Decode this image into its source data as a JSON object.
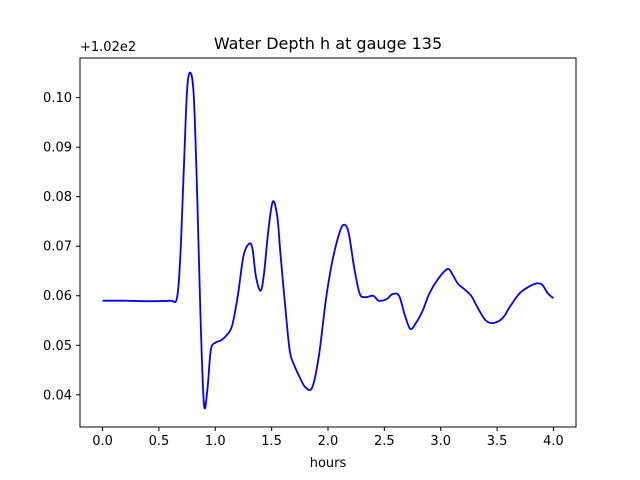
{
  "chart_data": {
    "type": "line",
    "title": "Water Depth h at gauge 135",
    "xlabel": "hours",
    "ylabel": "",
    "offset_label": "+1.02e2",
    "xlim": [
      -0.2,
      4.2
    ],
    "ylim": [
      0.0335,
      0.108
    ],
    "x_ticks": [
      0.0,
      0.5,
      1.0,
      1.5,
      2.0,
      2.5,
      3.0,
      3.5,
      4.0
    ],
    "x_tick_labels": [
      "0.0",
      "0.5",
      "1.0",
      "1.5",
      "2.0",
      "2.5",
      "3.0",
      "3.5",
      "4.0"
    ],
    "y_ticks": [
      0.04,
      0.05,
      0.06,
      0.07,
      0.08,
      0.09,
      0.1
    ],
    "y_tick_labels": [
      "0.04",
      "0.05",
      "0.06",
      "0.07",
      "0.08",
      "0.09",
      "0.10"
    ],
    "grid": false,
    "series": [
      {
        "color": "#0000ff",
        "x": [
          0.0,
          0.2,
          0.4,
          0.6,
          0.66,
          0.69,
          0.72,
          0.75,
          0.78,
          0.81,
          0.84,
          0.87,
          0.9,
          0.93,
          0.96,
          1.0,
          1.05,
          1.1,
          1.15,
          1.2,
          1.25,
          1.3,
          1.33,
          1.36,
          1.4,
          1.43,
          1.47,
          1.51,
          1.55,
          1.58,
          1.62,
          1.66,
          1.7,
          1.75,
          1.8,
          1.86,
          1.92,
          1.98,
          2.03,
          2.08,
          2.13,
          2.18,
          2.23,
          2.28,
          2.33,
          2.4,
          2.45,
          2.52,
          2.57,
          2.63,
          2.68,
          2.73,
          2.78,
          2.84,
          2.9,
          2.98,
          3.06,
          3.1,
          3.15,
          3.2,
          3.27,
          3.33,
          3.4,
          3.47,
          3.55,
          3.62,
          3.7,
          3.78,
          3.85,
          3.9,
          3.95,
          4.0
        ],
        "y": [
          0.059,
          0.059,
          0.0589,
          0.059,
          0.0595,
          0.068,
          0.085,
          0.1015,
          0.105,
          0.1,
          0.08,
          0.055,
          0.038,
          0.041,
          0.049,
          0.0505,
          0.051,
          0.052,
          0.054,
          0.06,
          0.068,
          0.0705,
          0.0695,
          0.064,
          0.061,
          0.064,
          0.073,
          0.079,
          0.076,
          0.068,
          0.058,
          0.049,
          0.046,
          0.0435,
          0.0415,
          0.0415,
          0.048,
          0.059,
          0.066,
          0.071,
          0.0742,
          0.073,
          0.066,
          0.0605,
          0.0597,
          0.06,
          0.059,
          0.0593,
          0.0603,
          0.06,
          0.0562,
          0.0533,
          0.0545,
          0.057,
          0.0605,
          0.0635,
          0.0654,
          0.0645,
          0.0625,
          0.0615,
          0.06,
          0.0575,
          0.055,
          0.0545,
          0.0555,
          0.058,
          0.0605,
          0.0618,
          0.0625,
          0.0622,
          0.0605,
          0.0595
        ]
      }
    ]
  }
}
